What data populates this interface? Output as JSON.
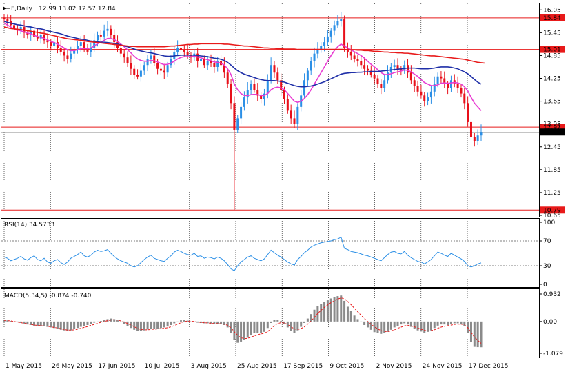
{
  "window": {
    "symbol_icon": "chart-arrow-icon",
    "title": "F,Daily",
    "ohlc": "12.99 13.02 12.57 12.84"
  },
  "colors": {
    "bull": "#2b8fe6",
    "bear": "#e8101a",
    "ma_fast": "#e83cd2",
    "ma_mid": "#1f2fa8",
    "ma_slow": "#e81a1a",
    "level": "#e81a1a",
    "rsi": "#2b8fe6",
    "macd_hist": "#8a8a8a",
    "macd_signal": "#e81a1a",
    "grid": "#000000"
  },
  "chart_data": [
    {
      "type": "candlestick",
      "name": "price",
      "ylim": [
        10.65,
        16.2
      ],
      "y_ticks": [
        "16.05",
        "15.45",
        "14.85",
        "14.25",
        "13.65",
        "13.05",
        "12.45",
        "11.85",
        "11.25",
        "10.65"
      ],
      "x_ticks": [
        "1 May 2015",
        "26 May 2015",
        "17 Jun 2015",
        "10 Jul 2015",
        "3 Aug 2015",
        "25 Aug 2015",
        "17 Sep 2015",
        "9 Oct 2015",
        "2 Nov 2015",
        "24 Nov 2015",
        "17 Dec 2015"
      ],
      "levels": [
        {
          "value": 15.84,
          "label": "15.84"
        },
        {
          "value": 15.01,
          "label": "15.01"
        },
        {
          "value": 12.97,
          "label": "12.97"
        },
        {
          "value": 10.79,
          "label": "10.79"
        }
      ],
      "current_price": {
        "value": 12.84,
        "label": "12.84"
      },
      "close": [
        15.8,
        15.75,
        15.65,
        15.55,
        15.5,
        15.6,
        15.45,
        15.4,
        15.5,
        15.35,
        15.3,
        15.4,
        15.25,
        15.2,
        15.1,
        15.2,
        15.05,
        14.95,
        14.85,
        14.75,
        14.9,
        15.0,
        15.1,
        15.2,
        15.05,
        14.95,
        15.05,
        15.25,
        15.4,
        15.35,
        15.5,
        15.55,
        15.4,
        15.2,
        15.05,
        14.9,
        14.8,
        14.65,
        14.5,
        14.35,
        14.3,
        14.45,
        14.6,
        14.75,
        14.85,
        14.65,
        14.5,
        14.45,
        14.4,
        14.6,
        14.75,
        14.95,
        15.05,
        15.0,
        14.95,
        14.85,
        14.8,
        14.9,
        14.7,
        14.75,
        14.6,
        14.7,
        14.65,
        14.55,
        14.7,
        14.6,
        14.4,
        14.1,
        13.6,
        12.9,
        13.2,
        13.5,
        13.75,
        13.95,
        14.1,
        13.95,
        13.8,
        13.7,
        13.85,
        14.2,
        14.6,
        14.4,
        14.2,
        13.95,
        13.7,
        13.4,
        13.2,
        13.05,
        13.5,
        13.8,
        14.2,
        14.45,
        14.7,
        14.9,
        15.0,
        15.1,
        15.2,
        15.35,
        15.5,
        15.65,
        15.75,
        15.8,
        15.05,
        14.95,
        14.85,
        14.75,
        14.7,
        14.6,
        14.5,
        14.45,
        14.35,
        14.25,
        14.1,
        14.0,
        14.2,
        14.4,
        14.55,
        14.6,
        14.5,
        14.45,
        14.6,
        14.4,
        14.2,
        14.05,
        13.9,
        13.8,
        13.65,
        13.75,
        13.9,
        14.1,
        14.3,
        14.25,
        14.1,
        14.0,
        14.2,
        14.1,
        14.0,
        13.85,
        13.6,
        13.1,
        12.7,
        12.6,
        12.75,
        12.84
      ],
      "series": [
        {
          "name": "MA fast",
          "values": [
            15.7,
            15.65,
            15.6,
            15.55,
            15.52,
            15.5,
            15.47,
            15.44,
            15.42,
            15.38,
            15.35,
            15.33,
            15.3,
            15.26,
            15.22,
            15.19,
            15.15,
            15.1,
            15.05,
            15.0,
            14.98,
            14.98,
            15.0,
            15.03,
            15.04,
            15.03,
            15.05,
            15.1,
            15.16,
            15.2,
            15.25,
            15.3,
            15.3,
            15.27,
            15.22,
            15.15,
            15.08,
            15.0,
            14.92,
            14.83,
            14.76,
            14.72,
            14.7,
            14.7,
            14.72,
            14.71,
            14.68,
            14.64,
            14.61,
            14.62,
            14.65,
            14.7,
            14.76,
            14.8,
            14.82,
            14.82,
            14.82,
            14.83,
            14.81,
            14.79,
            14.76,
            14.74,
            14.71,
            14.68,
            14.67,
            14.65,
            14.6,
            14.5,
            14.35,
            14.1,
            13.95,
            13.85,
            13.8,
            13.8,
            13.82,
            13.83,
            13.82,
            13.8,
            13.8,
            13.85,
            13.95,
            14.0,
            14.02,
            14.0,
            13.95,
            13.85,
            13.75,
            13.65,
            13.62,
            13.65,
            13.72,
            13.82,
            13.95,
            14.1,
            14.25,
            14.4,
            14.55,
            14.7,
            14.85,
            14.98,
            15.08,
            15.15,
            15.1,
            15.05,
            15.0,
            14.95,
            14.9,
            14.85,
            14.78,
            14.7,
            14.62,
            14.55,
            14.48,
            14.4,
            14.35,
            14.35,
            14.37,
            14.4,
            14.42,
            14.44,
            14.47,
            14.46,
            14.42,
            14.36,
            14.3,
            14.22,
            14.14,
            14.1,
            14.06,
            14.06,
            14.08,
            14.12,
            14.13,
            14.12,
            14.13,
            14.14,
            14.13,
            14.1,
            14.03,
            13.92,
            13.75,
            13.6,
            13.5,
            13.4
          ]
        },
        {
          "name": "MA mid",
          "values": [
            15.75,
            15.72,
            15.7,
            15.68,
            15.66,
            15.65,
            15.63,
            15.61,
            15.6,
            15.58,
            15.56,
            15.55,
            15.53,
            15.5,
            15.48,
            15.46,
            15.44,
            15.42,
            15.39,
            15.36,
            15.34,
            15.32,
            15.3,
            15.28,
            15.27,
            15.25,
            15.23,
            15.22,
            15.21,
            15.2,
            15.2,
            15.19,
            15.18,
            15.17,
            15.15,
            15.13,
            15.1,
            15.08,
            15.05,
            15.02,
            14.99,
            14.97,
            14.95,
            14.93,
            14.92,
            14.9,
            14.88,
            14.86,
            14.84,
            14.83,
            14.83,
            14.84,
            14.85,
            14.86,
            14.86,
            14.86,
            14.86,
            14.86,
            14.85,
            14.84,
            14.83,
            14.82,
            14.8,
            14.78,
            14.77,
            14.75,
            14.72,
            14.67,
            14.6,
            14.52,
            14.45,
            14.4,
            14.36,
            14.33,
            14.3,
            14.27,
            14.24,
            14.22,
            14.2,
            14.19,
            14.19,
            14.19,
            14.18,
            14.17,
            14.15,
            14.12,
            14.09,
            14.06,
            14.04,
            14.03,
            14.03,
            14.04,
            14.05,
            14.07,
            14.1,
            14.13,
            14.16,
            14.2,
            14.24,
            14.28,
            14.32,
            14.36,
            14.38,
            14.39,
            14.4,
            14.4,
            14.41,
            14.41,
            14.42,
            14.42,
            14.43,
            14.43,
            14.43,
            14.44,
            14.45,
            14.46,
            14.47,
            14.48,
            14.49,
            14.5,
            14.51,
            14.52,
            14.52,
            14.52,
            14.51,
            14.5,
            14.5,
            14.5,
            14.51,
            14.52,
            14.54,
            14.55,
            14.55,
            14.55,
            14.54,
            14.52,
            14.5,
            14.46,
            14.42,
            14.37,
            14.3,
            14.22,
            14.15,
            14.1
          ]
        },
        {
          "name": "MA slow",
          "values": [
            15.6,
            15.58,
            15.56,
            15.55,
            15.54,
            15.53,
            15.52,
            15.5,
            15.49,
            15.47,
            15.46,
            15.44,
            15.43,
            15.41,
            15.39,
            15.37,
            15.35,
            15.33,
            15.31,
            15.29,
            15.28,
            15.27,
            15.26,
            15.25,
            15.24,
            15.22,
            15.21,
            15.2,
            15.19,
            15.18,
            15.17,
            15.16,
            15.15,
            15.14,
            15.13,
            15.12,
            15.11,
            15.1,
            15.09,
            15.09,
            15.08,
            15.08,
            15.08,
            15.08,
            15.08,
            15.08,
            15.08,
            15.08,
            15.08,
            15.09,
            15.1,
            15.1,
            15.11,
            15.12,
            15.13,
            15.14,
            15.14,
            15.15,
            15.15,
            15.16,
            15.16,
            15.16,
            15.16,
            15.16,
            15.16,
            15.16,
            15.15,
            15.15,
            15.14,
            15.13,
            15.12,
            15.11,
            15.1,
            15.1,
            15.09,
            15.08,
            15.07,
            15.06,
            15.05,
            15.05,
            15.04,
            15.04,
            15.03,
            15.03,
            15.02,
            15.02,
            15.02,
            15.02,
            15.01,
            15.01,
            15.01,
            15.01,
            15.01,
            15.01,
            15.01,
            15.01,
            15.01,
            15.01,
            15.01,
            15.01,
            15.01,
            15.01,
            15.01,
            15.0,
            15.0,
            15.0,
            14.99,
            14.99,
            14.98,
            14.98,
            14.97,
            14.96,
            14.96,
            14.95,
            14.94,
            14.94,
            14.93,
            14.93,
            14.92,
            14.92,
            14.91,
            14.91,
            14.9,
            14.89,
            14.88,
            14.87,
            14.86,
            14.85,
            14.84,
            14.84,
            14.83,
            14.82,
            14.81,
            14.8,
            14.79,
            14.78,
            14.77,
            14.76,
            14.75,
            14.73,
            14.71,
            14.69,
            14.67,
            14.66,
            14.65
          ]
        }
      ]
    },
    {
      "type": "line",
      "name": "rsi",
      "header": "RSI(14) 34.5733",
      "ylim": [
        0,
        100
      ],
      "y_ticks": [
        "100",
        "70",
        "30",
        "0"
      ],
      "levels": [
        70,
        30
      ],
      "values": [
        44,
        42,
        38,
        40,
        42,
        45,
        41,
        39,
        43,
        46,
        40,
        38,
        42,
        36,
        34,
        38,
        40,
        35,
        32,
        36,
        42,
        45,
        48,
        52,
        46,
        44,
        47,
        52,
        55,
        53,
        54,
        56,
        50,
        45,
        41,
        38,
        36,
        34,
        30,
        28,
        30,
        35,
        40,
        44,
        47,
        42,
        40,
        38,
        37,
        42,
        46,
        52,
        55,
        53,
        50,
        48,
        47,
        50,
        45,
        46,
        42,
        44,
        43,
        41,
        44,
        42,
        38,
        32,
        25,
        22,
        30,
        36,
        40,
        44,
        46,
        42,
        40,
        38,
        41,
        48,
        55,
        51,
        47,
        44,
        40,
        36,
        33,
        31,
        40,
        45,
        51,
        55,
        60,
        63,
        65,
        67,
        68,
        69,
        70,
        72,
        73,
        76,
        58,
        56,
        53,
        52,
        51,
        49,
        47,
        46,
        44,
        42,
        40,
        38,
        43,
        48,
        52,
        53,
        50,
        49,
        53,
        47,
        43,
        40,
        37,
        36,
        33,
        36,
        40,
        46,
        52,
        50,
        47,
        45,
        50,
        47,
        44,
        41,
        37,
        30,
        28,
        30,
        33,
        34.57
      ]
    },
    {
      "type": "bar",
      "name": "macd",
      "header": "MACD(5,34,5) -0.874 -0.740",
      "ylim": [
        -1.079,
        0.932
      ],
      "y_ticks": [
        "0.932",
        "0.00",
        "-1.079"
      ],
      "values": [
        0.05,
        0.04,
        0.02,
        0.0,
        -0.02,
        -0.05,
        -0.07,
        -0.1,
        -0.12,
        -0.14,
        -0.15,
        -0.16,
        -0.16,
        -0.18,
        -0.2,
        -0.22,
        -0.25,
        -0.28,
        -0.3,
        -0.32,
        -0.3,
        -0.26,
        -0.22,
        -0.18,
        -0.16,
        -0.12,
        -0.08,
        -0.04,
        0.0,
        0.02,
        0.05,
        0.08,
        0.1,
        0.08,
        0.04,
        -0.02,
        -0.08,
        -0.15,
        -0.22,
        -0.28,
        -0.32,
        -0.33,
        -0.3,
        -0.27,
        -0.24,
        -0.24,
        -0.24,
        -0.22,
        -0.2,
        -0.17,
        -0.12,
        -0.06,
        0.0,
        0.04,
        0.05,
        0.03,
        0.0,
        -0.02,
        -0.04,
        -0.05,
        -0.06,
        -0.06,
        -0.07,
        -0.08,
        -0.08,
        -0.09,
        -0.12,
        -0.2,
        -0.38,
        -0.62,
        -0.72,
        -0.68,
        -0.62,
        -0.55,
        -0.45,
        -0.4,
        -0.38,
        -0.38,
        -0.35,
        -0.22,
        -0.05,
        0.05,
        0.06,
        0.02,
        -0.08,
        -0.2,
        -0.32,
        -0.38,
        -0.3,
        -0.18,
        -0.05,
        0.1,
        0.25,
        0.4,
        0.52,
        0.6,
        0.66,
        0.72,
        0.78,
        0.82,
        0.86,
        0.88,
        0.7,
        0.5,
        0.35,
        0.2,
        0.08,
        -0.02,
        -0.12,
        -0.2,
        -0.28,
        -0.36,
        -0.4,
        -0.42,
        -0.4,
        -0.35,
        -0.28,
        -0.2,
        -0.15,
        -0.1,
        -0.06,
        -0.1,
        -0.18,
        -0.25,
        -0.3,
        -0.34,
        -0.38,
        -0.35,
        -0.3,
        -0.22,
        -0.14,
        -0.1,
        -0.1,
        -0.12,
        -0.08,
        -0.06,
        -0.06,
        -0.1,
        -0.16,
        -0.4,
        -0.7,
        -0.86,
        -0.87,
        -0.874
      ],
      "signal": [
        0.04,
        0.03,
        0.02,
        0.0,
        -0.02,
        -0.04,
        -0.06,
        -0.08,
        -0.1,
        -0.12,
        -0.13,
        -0.14,
        -0.15,
        -0.16,
        -0.18,
        -0.2,
        -0.22,
        -0.24,
        -0.27,
        -0.29,
        -0.29,
        -0.28,
        -0.26,
        -0.23,
        -0.2,
        -0.17,
        -0.13,
        -0.1,
        -0.06,
        -0.03,
        0.0,
        0.03,
        0.05,
        0.06,
        0.05,
        0.02,
        -0.02,
        -0.07,
        -0.12,
        -0.18,
        -0.23,
        -0.27,
        -0.28,
        -0.28,
        -0.27,
        -0.26,
        -0.25,
        -0.24,
        -0.23,
        -0.21,
        -0.18,
        -0.14,
        -0.09,
        -0.04,
        0.0,
        0.01,
        0.01,
        0.0,
        -0.02,
        -0.03,
        -0.04,
        -0.05,
        -0.06,
        -0.07,
        -0.07,
        -0.08,
        -0.09,
        -0.13,
        -0.21,
        -0.35,
        -0.47,
        -0.55,
        -0.58,
        -0.57,
        -0.53,
        -0.49,
        -0.45,
        -0.42,
        -0.4,
        -0.34,
        -0.24,
        -0.14,
        -0.07,
        -0.04,
        -0.05,
        -0.1,
        -0.18,
        -0.25,
        -0.27,
        -0.24,
        -0.18,
        -0.09,
        0.02,
        0.14,
        0.27,
        0.38,
        0.48,
        0.56,
        0.64,
        0.7,
        0.76,
        0.8,
        0.77,
        0.68,
        0.57,
        0.45,
        0.33,
        0.21,
        0.1,
        0.0,
        -0.09,
        -0.18,
        -0.25,
        -0.31,
        -0.34,
        -0.34,
        -0.32,
        -0.28,
        -0.23,
        -0.19,
        -0.15,
        -0.13,
        -0.15,
        -0.18,
        -0.22,
        -0.26,
        -0.3,
        -0.32,
        -0.31,
        -0.28,
        -0.23,
        -0.19,
        -0.16,
        -0.14,
        -0.12,
        -0.1,
        -0.09,
        -0.09,
        -0.11,
        -0.21,
        -0.37,
        -0.53,
        -0.64,
        -0.74
      ]
    }
  ]
}
